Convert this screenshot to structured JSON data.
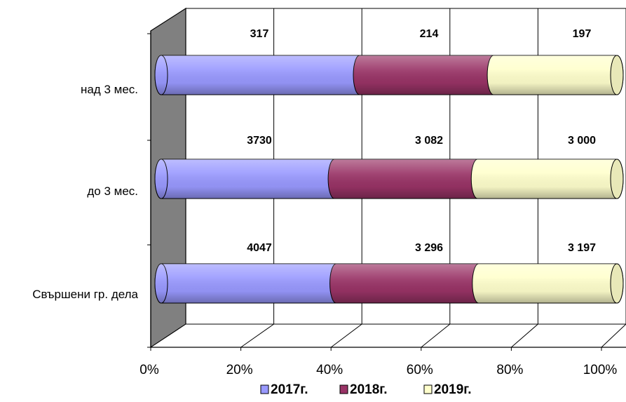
{
  "chart_data": {
    "type": "bar",
    "orientation": "horizontal",
    "stacked": "percent",
    "three_d": true,
    "categories": [
      "Свършени гр. дела",
      "до 3 мес.",
      "над 3 мес."
    ],
    "series": [
      {
        "name": "2017г.",
        "values": [
          4047,
          3730,
          317
        ],
        "labels": [
          "4047",
          "3730",
          "317"
        ],
        "color": "#9999ff"
      },
      {
        "name": "2018г.",
        "values": [
          3296,
          3082,
          214
        ],
        "labels": [
          "3 296",
          "3 082",
          "214"
        ],
        "color": "#993366"
      },
      {
        "name": "2019г.",
        "values": [
          3197,
          3000,
          197
        ],
        "labels": [
          "3 197",
          "3 000",
          "197"
        ],
        "color": "#ffffcc"
      }
    ],
    "x_ticks": [
      "0%",
      "20%",
      "40%",
      "60%",
      "80%",
      "100%"
    ],
    "xlim": [
      0,
      100
    ],
    "grid": true,
    "legend_position": "bottom"
  }
}
